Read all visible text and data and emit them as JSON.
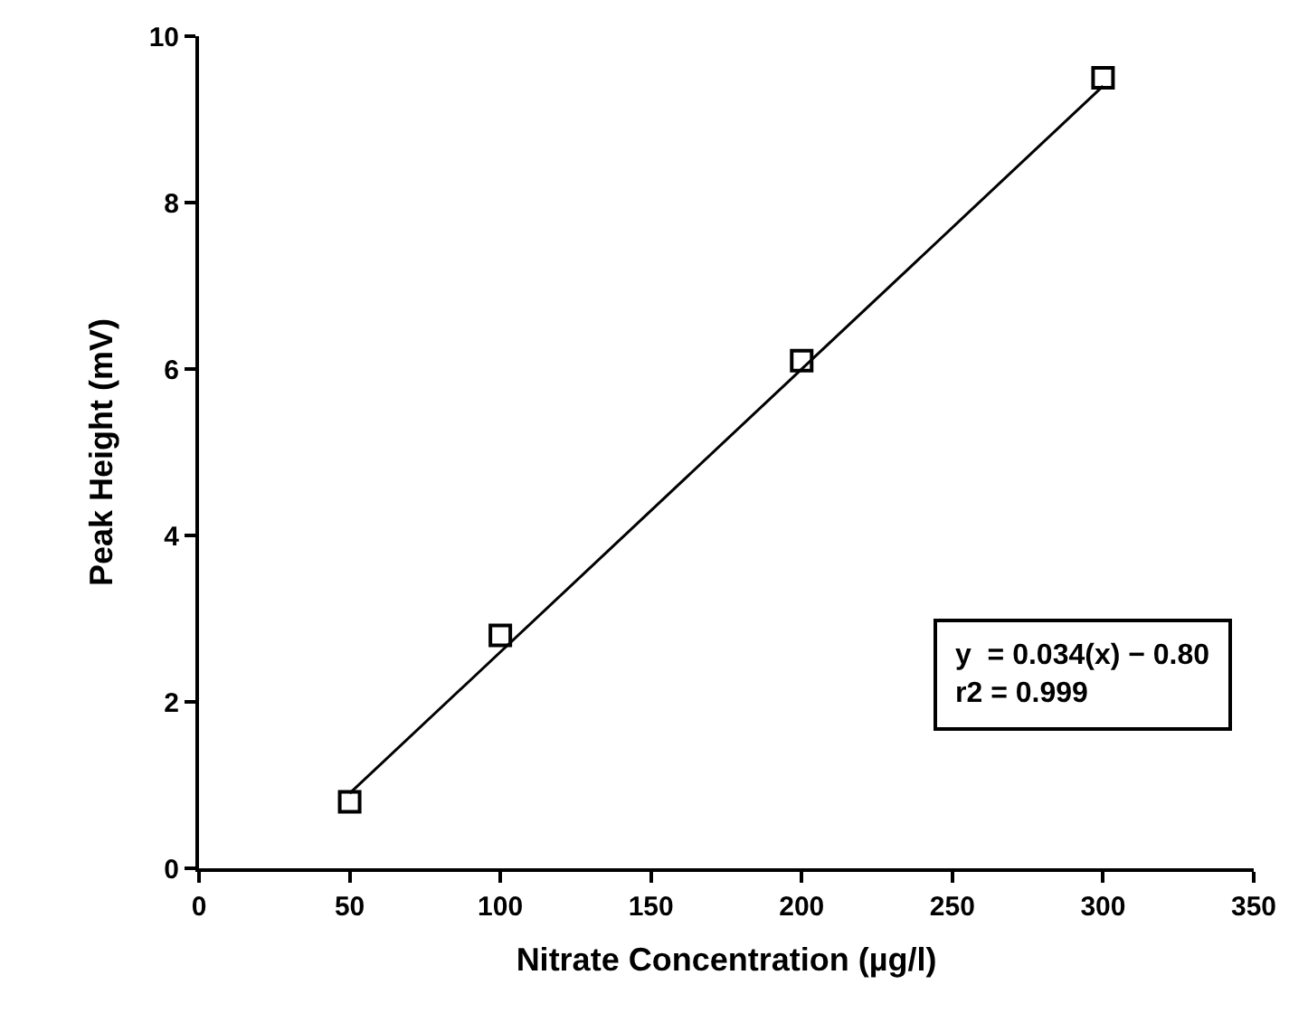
{
  "chart_data": {
    "type": "scatter",
    "xlabel": "Nitrate Concentration (µg/l)",
    "ylabel": "Peak Height (mV)",
    "series": [
      {
        "color": "#000000",
        "marker": "square",
        "x": [
          50,
          100,
          200,
          300
        ],
        "values": [
          0.8,
          2.8,
          6.1,
          9.5
        ]
      },
      {
        "type": "line",
        "color": "#000000",
        "x": [
          50,
          300
        ],
        "values": [
          0.9,
          9.4
        ]
      }
    ],
    "xlim": [
      0,
      350
    ],
    "xticks": [
      0,
      50,
      100,
      150,
      200,
      250,
      300,
      350
    ],
    "ylim": [
      0,
      10
    ],
    "yticks": [
      0,
      2,
      4,
      6,
      8,
      10
    ],
    "line_style": "solid",
    "annotations": [
      "y  = 0.034(x) − 0.80\nr2 = 0.999"
    ]
  }
}
